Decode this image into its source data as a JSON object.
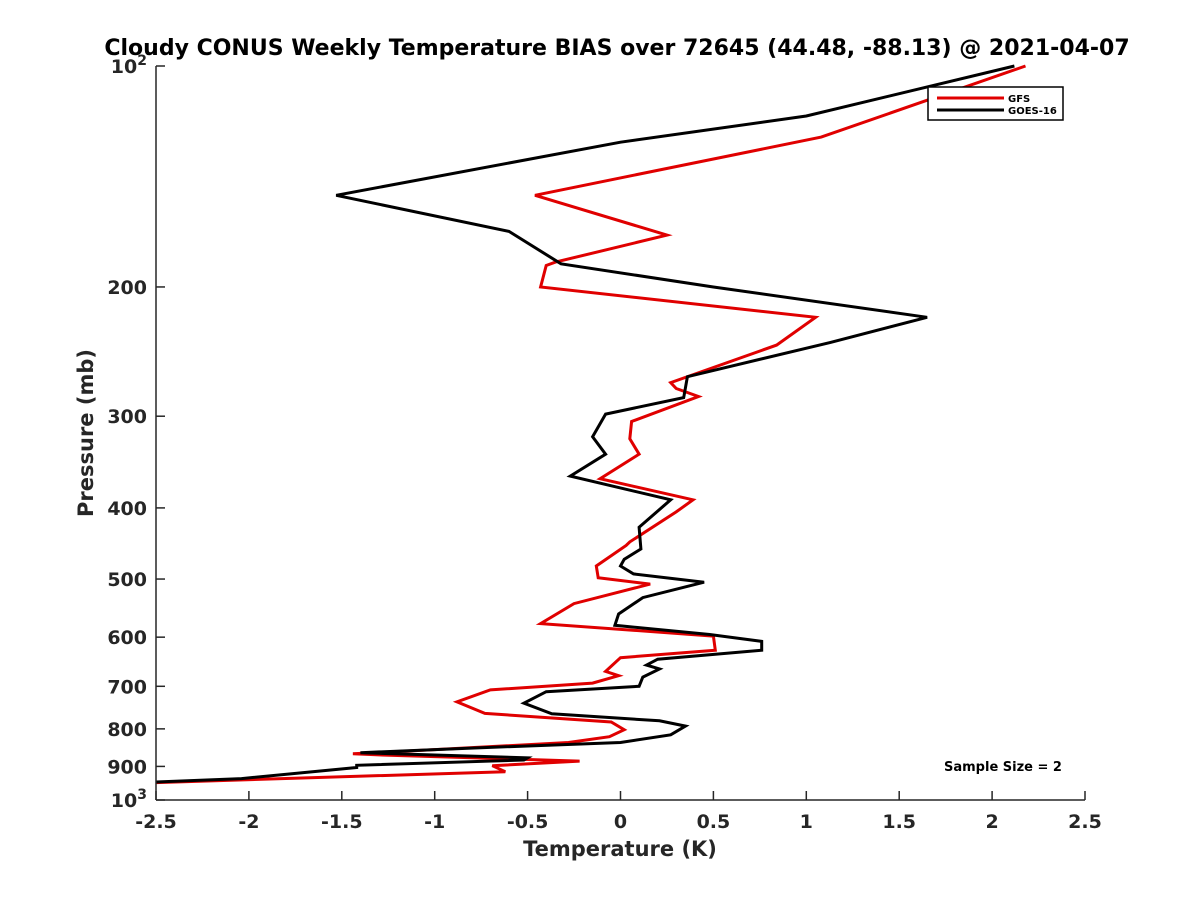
{
  "chart_data": {
    "type": "line",
    "title": "Cloudy CONUS Weekly Temperature BIAS over 72645 (44.48, -88.13) @ 2021-04-07",
    "xlabel": "Temperature (K)",
    "ylabel": "Pressure (mb)",
    "xlim": [
      -2.5,
      2.5
    ],
    "ylim": [
      1000,
      100
    ],
    "y_scale": "log",
    "y_reversed": true,
    "x_ticks": [
      -2.5,
      -2,
      -1.5,
      -1,
      -0.5,
      0,
      0.5,
      1,
      1.5,
      2,
      2.5
    ],
    "x_tick_labels": [
      "-2.5",
      "-2",
      "-1.5",
      "-1",
      "-0.5",
      "0",
      "0.5",
      "1",
      "1.5",
      "2",
      "2.5"
    ],
    "y_ticks": [
      {
        "value": 100,
        "base": "10",
        "exp": "2"
      },
      {
        "value": 200,
        "label": "200"
      },
      {
        "value": 300,
        "label": "300"
      },
      {
        "value": 400,
        "label": "400"
      },
      {
        "value": 500,
        "label": "500"
      },
      {
        "value": 600,
        "label": "600"
      },
      {
        "value": 700,
        "label": "700"
      },
      {
        "value": 800,
        "label": "800"
      },
      {
        "value": 900,
        "label": "900"
      },
      {
        "value": 1000,
        "base": "10",
        "exp": "3"
      }
    ],
    "grid": false,
    "legend_position": "top-right",
    "annotation": "Sample Size = 2",
    "series": [
      {
        "name": "GFS",
        "color": "#e00000",
        "points": [
          [
            2.18,
            100
          ],
          [
            1.08,
            125
          ],
          [
            -0.46,
            150
          ],
          [
            0.25,
            170
          ],
          [
            -0.35,
            185
          ],
          [
            -0.4,
            187
          ],
          [
            -0.43,
            200
          ],
          [
            1.05,
            220
          ],
          [
            0.84,
            240
          ],
          [
            0.27,
            270
          ],
          [
            0.3,
            275
          ],
          [
            0.42,
            282
          ],
          [
            0.06,
            305
          ],
          [
            0.05,
            322
          ],
          [
            0.1,
            338
          ],
          [
            -0.11,
            365
          ],
          [
            0.39,
            390
          ],
          [
            0.3,
            405
          ],
          [
            0.05,
            445
          ],
          [
            0.03,
            450
          ],
          [
            -0.13,
            480
          ],
          [
            -0.12,
            498
          ],
          [
            0.16,
            508
          ],
          [
            -0.25,
            540
          ],
          [
            -0.43,
            575
          ],
          [
            0.5,
            598
          ],
          [
            0.51,
            625
          ],
          [
            0.0,
            640
          ],
          [
            -0.08,
            668
          ],
          [
            -0.01,
            677
          ],
          [
            -0.15,
            693
          ],
          [
            -0.7,
            708
          ],
          [
            -0.88,
            735
          ],
          [
            -0.73,
            762
          ],
          [
            -0.05,
            783
          ],
          [
            0.02,
            802
          ],
          [
            -0.06,
            820
          ],
          [
            -0.28,
            835
          ],
          [
            -1.05,
            855
          ],
          [
            -1.44,
            865
          ],
          [
            -1.3,
            868
          ],
          [
            -0.22,
            885
          ],
          [
            -0.69,
            898
          ],
          [
            -0.62,
            915
          ],
          [
            -2.5,
            947
          ]
        ]
      },
      {
        "name": "GOES-16",
        "color": "#000000",
        "points": [
          [
            2.12,
            100
          ],
          [
            1.0,
            117
          ],
          [
            0.0,
            127
          ],
          [
            -1.53,
            150
          ],
          [
            -0.6,
            168
          ],
          [
            -0.32,
            186
          ],
          [
            0.5,
            200
          ],
          [
            1.65,
            220
          ],
          [
            1.13,
            238
          ],
          [
            0.36,
            265
          ],
          [
            0.34,
            283
          ],
          [
            -0.08,
            298
          ],
          [
            -0.15,
            320
          ],
          [
            -0.08,
            338
          ],
          [
            -0.27,
            362
          ],
          [
            0.27,
            390
          ],
          [
            0.1,
            425
          ],
          [
            0.11,
            455
          ],
          [
            0.02,
            470
          ],
          [
            0.0,
            480
          ],
          [
            0.07,
            492
          ],
          [
            0.45,
            505
          ],
          [
            0.12,
            530
          ],
          [
            -0.01,
            558
          ],
          [
            -0.03,
            578
          ],
          [
            0.48,
            595
          ],
          [
            0.76,
            608
          ],
          [
            0.76,
            625
          ],
          [
            0.2,
            643
          ],
          [
            0.14,
            655
          ],
          [
            0.21,
            663
          ],
          [
            0.12,
            680
          ],
          [
            0.1,
            700
          ],
          [
            -0.4,
            712
          ],
          [
            -0.52,
            738
          ],
          [
            -0.37,
            763
          ],
          [
            0.21,
            780
          ],
          [
            0.35,
            793
          ],
          [
            0.27,
            815
          ],
          [
            0.0,
            835
          ],
          [
            -0.82,
            850
          ],
          [
            -1.4,
            862
          ],
          [
            -0.5,
            876
          ],
          [
            -0.52,
            882
          ],
          [
            -1.42,
            897
          ],
          [
            -1.42,
            903
          ],
          [
            -2.04,
            935
          ],
          [
            -2.5,
            945
          ]
        ]
      }
    ]
  }
}
